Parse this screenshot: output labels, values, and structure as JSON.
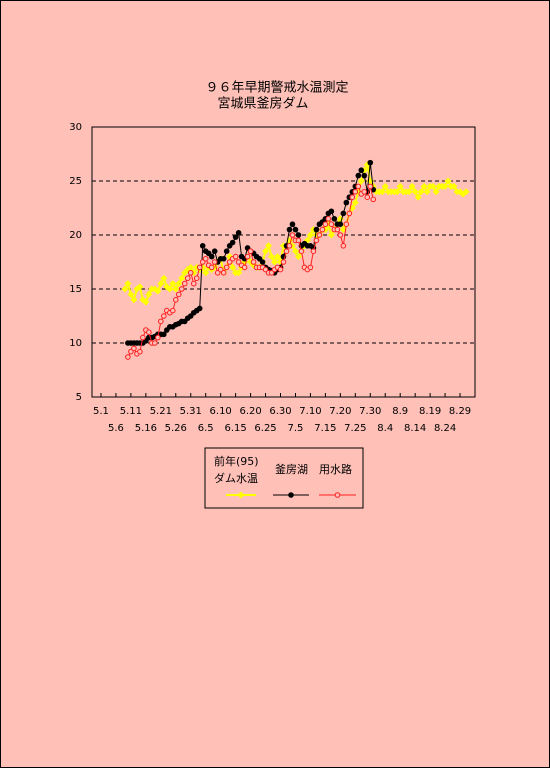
{
  "chart_data": {
    "type": "line",
    "title": "９６年早期警戒水温測定",
    "subtitle": "宮城県釜房ダム",
    "xlim": [
      -3,
      125
    ],
    "xticks": [
      {
        "value": 0,
        "label": "5.1"
      },
      {
        "value": 5,
        "label": "5.6"
      },
      {
        "value": 10,
        "label": "5.11"
      },
      {
        "value": 15,
        "label": "5.16"
      },
      {
        "value": 20,
        "label": "5.21"
      },
      {
        "value": 25,
        "label": "5.26"
      },
      {
        "value": 30,
        "label": "5.31"
      },
      {
        "value": 35,
        "label": "6.5"
      },
      {
        "value": 40,
        "label": "6.10"
      },
      {
        "value": 45,
        "label": "6.15"
      },
      {
        "value": 50,
        "label": "6.20"
      },
      {
        "value": 55,
        "label": "6.25"
      },
      {
        "value": 60,
        "label": "6.30"
      },
      {
        "value": 65,
        "label": "7.5"
      },
      {
        "value": 70,
        "label": "7.10"
      },
      {
        "value": 75,
        "label": "7.15"
      },
      {
        "value": 80,
        "label": "7.20"
      },
      {
        "value": 85,
        "label": "7.25"
      },
      {
        "value": 90,
        "label": "7.30"
      },
      {
        "value": 95,
        "label": "8.4"
      },
      {
        "value": 100,
        "label": "8.9"
      },
      {
        "value": 105,
        "label": "8.14"
      },
      {
        "value": 110,
        "label": "8.19"
      },
      {
        "value": 115,
        "label": "8.24"
      },
      {
        "value": 120,
        "label": "8.29"
      }
    ],
    "ylim": [
      5,
      30
    ],
    "yticks": [
      5,
      10,
      15,
      20,
      25,
      30
    ],
    "grid": true,
    "series": [
      {
        "name": "前年(95)\nダム水温",
        "color": "#ffff00",
        "marker": "diamond",
        "x": [
          8,
          9,
          10,
          11,
          12,
          13,
          14,
          15,
          16,
          17,
          18,
          19,
          20,
          21,
          22,
          23,
          24,
          25,
          26,
          27,
          28,
          29,
          30,
          31,
          32,
          33,
          34,
          35,
          36,
          37,
          38,
          39,
          40,
          41,
          42,
          43,
          44,
          45,
          46,
          47,
          48,
          49,
          50,
          51,
          52,
          53,
          54,
          55,
          56,
          57,
          58,
          59,
          60,
          61,
          62,
          63,
          64,
          65,
          66,
          67,
          68,
          69,
          70,
          71,
          72,
          73,
          74,
          75,
          76,
          77,
          78,
          79,
          80,
          81,
          82,
          83,
          84,
          85,
          86,
          87,
          88,
          89,
          90,
          91,
          92,
          93,
          94,
          95,
          96,
          97,
          98,
          99,
          100,
          101,
          102,
          103,
          104,
          105,
          106,
          107,
          108,
          109,
          110,
          111,
          112,
          113,
          114,
          115,
          116,
          117,
          118,
          119,
          120,
          121,
          122
        ],
        "values": [
          15,
          15.5,
          14.5,
          14,
          15,
          15.2,
          14,
          13.8,
          14.5,
          15,
          15,
          14.8,
          15.5,
          16,
          15.2,
          15,
          15.5,
          15,
          15.5,
          16,
          16.5,
          16.8,
          17,
          16.5,
          17,
          16.8,
          17,
          16.5,
          17,
          16.8,
          17,
          17.5,
          17.8,
          16.5,
          17,
          18,
          17,
          16.5,
          16.5,
          17,
          17.5,
          18,
          17.5,
          17.2,
          17,
          17,
          17.5,
          18.5,
          19,
          18,
          17.5,
          18,
          17.5,
          19,
          18.5,
          19.5,
          19,
          18.5,
          18,
          18.5,
          19,
          19.5,
          20,
          20.5,
          20,
          20,
          20.5,
          20.5,
          21,
          20,
          20.5,
          21,
          21.5,
          20.5,
          21,
          22,
          22.5,
          23,
          24,
          25,
          26,
          26.5,
          25,
          24.5,
          24,
          24,
          24,
          24.5,
          24,
          24,
          24,
          24,
          24.5,
          24,
          24,
          24,
          24.5,
          24,
          23.5,
          24,
          24.5,
          24,
          24.5,
          24.5,
          24,
          24.5,
          24.5,
          24.5,
          25,
          24.5,
          24.5,
          24,
          24,
          23.8,
          24
        ]
      },
      {
        "name": "釜房湖",
        "color": "#000000",
        "marker": "dot",
        "x": [
          9,
          10,
          11,
          12,
          13,
          14,
          15,
          16,
          17,
          18,
          19,
          20,
          21,
          22,
          23,
          24,
          25,
          26,
          27,
          28,
          29,
          30,
          31,
          32,
          33,
          34,
          35,
          36,
          37,
          38,
          39,
          40,
          41,
          42,
          43,
          44,
          45,
          46,
          47,
          48,
          49,
          50,
          51,
          52,
          53,
          54,
          55,
          56,
          57,
          58,
          59,
          60,
          61,
          62,
          63,
          64,
          65,
          66,
          67,
          68,
          69,
          70,
          71,
          72,
          73,
          74,
          75,
          76,
          77,
          78,
          79,
          80,
          81,
          82,
          83,
          84,
          85,
          86,
          87,
          88,
          89,
          90,
          91
        ],
        "values": [
          10,
          10,
          10,
          10,
          10,
          10,
          10.2,
          10.5,
          10.5,
          10.6,
          10.8,
          10.8,
          10.8,
          11.2,
          11.5,
          11.5,
          11.7,
          11.8,
          12,
          12,
          12.3,
          12.5,
          12.8,
          13,
          13.2,
          19,
          18.5,
          18.3,
          18,
          18.5,
          17.5,
          17.8,
          17.8,
          18.5,
          19,
          19.3,
          19.8,
          20.2,
          18,
          17.8,
          18.8,
          18.5,
          18.3,
          18,
          17.8,
          17.5,
          17,
          16.8,
          16.7,
          16.5,
          16.8,
          17,
          18,
          19,
          20.5,
          21,
          20.5,
          20,
          19,
          19.2,
          19,
          19,
          18.8,
          20.5,
          21,
          21.2,
          21.5,
          22,
          22.2,
          21.5,
          21,
          21,
          22,
          23,
          23.5,
          24,
          24.5,
          25.5,
          26,
          25.5,
          24,
          26.7,
          24.2
        ]
      },
      {
        "name": "用水路",
        "color": "#ff2020",
        "marker": "ring",
        "x": [
          9,
          10,
          11,
          12,
          13,
          14,
          15,
          16,
          17,
          18,
          19,
          20,
          21,
          22,
          23,
          24,
          25,
          26,
          27,
          28,
          29,
          30,
          31,
          32,
          33,
          34,
          35,
          36,
          37,
          38,
          39,
          40,
          41,
          42,
          43,
          44,
          45,
          46,
          47,
          48,
          49,
          50,
          51,
          52,
          53,
          54,
          55,
          56,
          57,
          58,
          59,
          60,
          61,
          62,
          63,
          64,
          65,
          66,
          67,
          68,
          69,
          70,
          71,
          72,
          73,
          74,
          75,
          76,
          77,
          78,
          79,
          80,
          81,
          82,
          83,
          84,
          85,
          86,
          87,
          88,
          89,
          90,
          91
        ],
        "values": [
          8.7,
          9.2,
          9.5,
          9,
          9.2,
          10.5,
          11.2,
          11,
          10,
          10,
          10.5,
          12,
          12.5,
          13,
          12.8,
          13,
          14,
          14.5,
          15,
          15.5,
          16,
          16.5,
          15.5,
          16,
          17,
          17.5,
          17.8,
          17.2,
          17,
          17.5,
          16.5,
          16.8,
          16.5,
          17,
          17.5,
          17.8,
          18,
          17.5,
          17.2,
          17,
          18,
          18.5,
          17.5,
          17,
          17,
          17,
          16.8,
          16.5,
          16.5,
          16.8,
          17,
          16.8,
          17.5,
          18.5,
          19,
          20,
          19.5,
          19.5,
          18.5,
          17,
          16.8,
          17,
          18.5,
          19.5,
          20,
          20.5,
          21,
          21.5,
          21,
          20.5,
          20.5,
          20,
          19,
          21,
          22,
          23.5,
          24,
          24.5,
          23.8,
          24,
          23.5,
          24.5,
          23.3
        ]
      }
    ]
  }
}
